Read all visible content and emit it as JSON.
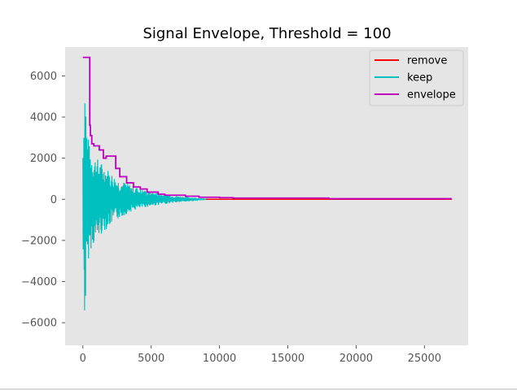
{
  "chart_data": {
    "type": "line",
    "title": "Signal Envelope, Threshold = 100",
    "xlabel": "",
    "ylabel": "",
    "xlim": [
      -1300,
      28200
    ],
    "ylim": [
      -7100,
      7400
    ],
    "xticks": [
      0,
      5000,
      10000,
      15000,
      20000,
      25000
    ],
    "yticks": [
      -6000,
      -4000,
      -2000,
      0,
      2000,
      4000,
      6000
    ],
    "xtick_labels": [
      "0",
      "5000",
      "10000",
      "15000",
      "20000",
      "25000"
    ],
    "ytick_labels": [
      "−6000",
      "−4000",
      "−2000",
      "0",
      "2000",
      "4000",
      "6000"
    ],
    "grid": false,
    "legend_position": "top-right",
    "series": [
      {
        "name": "remove",
        "color": "#ff0000",
        "x": [
          0,
          27000
        ],
        "y": [
          0,
          0
        ]
      },
      {
        "name": "keep",
        "color": "#00bfbf",
        "envelope_x": [
          0,
          150,
          300,
          500,
          800,
          1200,
          1800,
          2500,
          3500,
          4500,
          5500,
          6500,
          7500,
          8500,
          9000
        ],
        "envelope_upper": [
          3000,
          6500,
          3500,
          2500,
          2200,
          1900,
          1500,
          1000,
          700,
          450,
          300,
          200,
          120,
          60,
          30
        ],
        "envelope_lower": [
          -3000,
          -6400,
          -3500,
          -2500,
          -2200,
          -1800,
          -1400,
          -1000,
          -600,
          -400,
          -280,
          -180,
          -120,
          -60,
          -30
        ]
      },
      {
        "name": "envelope",
        "color": "#bf00bf",
        "x": [
          0,
          500,
          500,
          550,
          550,
          650,
          650,
          800,
          800,
          1200,
          1200,
          1500,
          1500,
          1700,
          1700,
          2400,
          2400,
          2700,
          2700,
          3200,
          3200,
          3700,
          3700,
          4200,
          4200,
          4700,
          4700,
          5500,
          5500,
          6000,
          6000,
          7500,
          7500,
          8500,
          8500,
          10000,
          10000,
          11000,
          11000,
          18000,
          18000,
          27000
        ],
        "y": [
          6900,
          6900,
          3600,
          3600,
          3100,
          3100,
          2700,
          2700,
          2600,
          2600,
          2400,
          2400,
          2000,
          2000,
          2100,
          2100,
          1500,
          1500,
          1100,
          1100,
          800,
          800,
          600,
          600,
          500,
          500,
          350,
          350,
          250,
          250,
          200,
          200,
          150,
          150,
          100,
          100,
          80,
          80,
          60,
          60,
          30,
          30
        ]
      }
    ]
  }
}
